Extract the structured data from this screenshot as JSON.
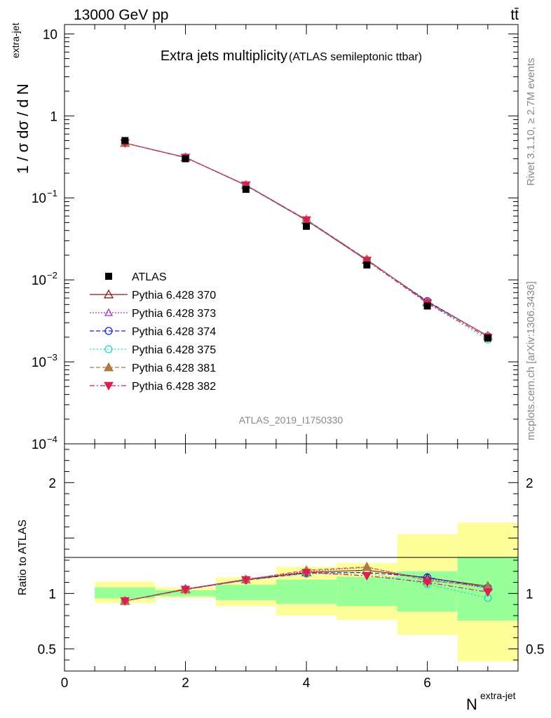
{
  "header": {
    "energy_label": "13000 GeV pp",
    "process_label": "tt̄"
  },
  "side_labels": {
    "rivet": "Rivet 3.1.10, ≥ 2.7M events",
    "mcplots": "mcplots.cern.ch [arXiv:1306.3436]"
  },
  "chart_data": [
    {
      "type": "scatter",
      "title": "Extra jets multiplicity",
      "subtitle": "(ATLAS semileptonic ttbar)",
      "ylabel": "1 / σ dσ / d N",
      "ylabel_sup": "extra-jet",
      "watermark": "ATLAS_2019_I1750330",
      "yscale": "log",
      "ylim": [
        0.0001,
        13
      ],
      "xlim": [
        0,
        7.5
      ],
      "ytick_labels": [
        {
          "value": 10,
          "base": "10",
          "exp": ""
        },
        {
          "value": 1,
          "base": "1",
          "exp": ""
        },
        {
          "value": 0.1,
          "base": "10",
          "exp": "−1"
        },
        {
          "value": 0.01,
          "base": "10",
          "exp": "−2"
        },
        {
          "value": 0.001,
          "base": "10",
          "exp": "−3"
        },
        {
          "value": 0.0001,
          "base": "10",
          "exp": "−4"
        }
      ],
      "x": [
        1,
        2,
        3,
        4,
        5,
        6,
        7
      ],
      "data": {
        "name": "ATLAS",
        "values": [
          0.5,
          0.3,
          0.127,
          0.045,
          0.0152,
          0.0048,
          0.00195
        ]
      },
      "series": [
        {
          "name": "Pythia 6.428 370",
          "color": "#8b1a1a",
          "marker": "triangle-open",
          "dash": "",
          "values": [
            0.466,
            0.312,
            0.143,
            0.0535,
            0.0175,
            0.0054,
            0.00208
          ]
        },
        {
          "name": "Pythia 6.428 373",
          "color": "#9a32cd",
          "marker": "triangle-open-small",
          "dash": "2,2",
          "values": [
            0.468,
            0.311,
            0.144,
            0.054,
            0.0178,
            0.0054,
            0.00205
          ]
        },
        {
          "name": "Pythia 6.428 374",
          "color": "#1f1fdc",
          "marker": "circle-open",
          "dash": "6,3",
          "values": [
            0.466,
            0.311,
            0.142,
            0.0532,
            0.0174,
            0.0055,
            0.00205
          ]
        },
        {
          "name": "Pythia 6.428 375",
          "color": "#19d8c0",
          "marker": "circle-open",
          "dash": "2,3",
          "values": [
            0.466,
            0.31,
            0.142,
            0.053,
            0.0173,
            0.0052,
            0.00187
          ]
        },
        {
          "name": "Pythia 6.428 381",
          "color": "#b07844",
          "marker": "triangle-filled",
          "dash": "6,3",
          "values": [
            0.467,
            0.31,
            0.143,
            0.0545,
            0.0178,
            0.0053,
            0.00208
          ]
        },
        {
          "name": "Pythia 6.428 382",
          "color": "#dc1e50",
          "marker": "triangle-down-filled",
          "dash": "7,3,2,3",
          "values": [
            0.466,
            0.31,
            0.143,
            0.0535,
            0.0172,
            0.0052,
            0.00198
          ]
        }
      ]
    },
    {
      "type": "scatter",
      "ylabel": "Ratio to ATLAS",
      "xlabel": "N",
      "xlabel_sup": "extra-jet",
      "ylim": [
        0.3,
        2.35
      ],
      "xlim": [
        0,
        7.5
      ],
      "xticks": [
        0,
        2,
        4,
        6
      ],
      "yticks_left": [
        2,
        1,
        0.5
      ],
      "yticks_right": [
        2,
        1,
        0.5
      ],
      "bands": [
        {
          "x0": 0.5,
          "x1": 1.5,
          "green": [
            0.955,
            1.055
          ],
          "yellow": [
            0.915,
            1.105
          ]
        },
        {
          "x0": 1.5,
          "x1": 2.5,
          "green": [
            0.975,
            1.03
          ],
          "yellow": [
            0.96,
            1.055
          ]
        },
        {
          "x0": 2.5,
          "x1": 3.5,
          "green": [
            0.94,
            1.08
          ],
          "yellow": [
            0.885,
            1.145
          ]
        },
        {
          "x0": 3.5,
          "x1": 4.5,
          "green": [
            0.905,
            1.125
          ],
          "yellow": [
            0.8,
            1.24
          ]
        },
        {
          "x0": 4.5,
          "x1": 5.5,
          "green": [
            0.885,
            1.15
          ],
          "yellow": [
            0.76,
            1.275
          ]
        },
        {
          "x0": 5.5,
          "x1": 6.5,
          "green": [
            0.835,
            1.2
          ],
          "yellow": [
            0.625,
            1.535
          ]
        },
        {
          "x0": 6.5,
          "x1": 7.5,
          "green": [
            0.755,
            1.33
          ],
          "yellow": [
            0.385,
            1.64
          ]
        }
      ],
      "series": [
        {
          "name": "Pythia 6.428 370",
          "values": [
            0.932,
            1.04,
            1.125,
            1.19,
            1.21,
            1.14,
            1.066
          ]
        },
        {
          "name": "Pythia 6.428 373",
          "values": [
            0.935,
            1.037,
            1.13,
            1.2,
            1.235,
            1.13,
            1.05
          ]
        },
        {
          "name": "Pythia 6.428 374",
          "values": [
            0.932,
            1.036,
            1.12,
            1.183,
            1.19,
            1.145,
            1.052
          ]
        },
        {
          "name": "Pythia 6.428 375",
          "values": [
            0.932,
            1.034,
            1.12,
            1.178,
            1.185,
            1.085,
            0.96
          ]
        },
        {
          "name": "Pythia 6.428 381",
          "values": [
            0.934,
            1.035,
            1.125,
            1.21,
            1.24,
            1.115,
            1.065
          ]
        },
        {
          "name": "Pythia 6.428 382",
          "values": [
            0.932,
            1.035,
            1.122,
            1.188,
            1.16,
            1.1,
            1.012
          ]
        }
      ]
    }
  ]
}
